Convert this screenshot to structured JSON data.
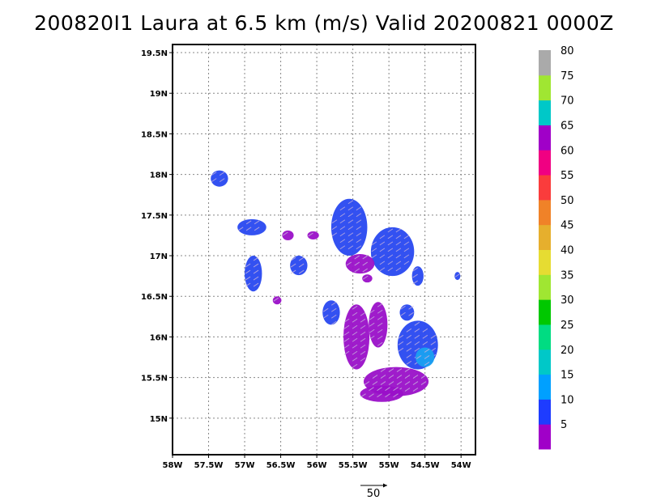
{
  "title": "200820I1 Laura at 6.5 km (m/s) Valid 20200821 0000Z",
  "map": {
    "lon_range": [
      -58,
      -53.8
    ],
    "lat_range": [
      14.55,
      19.6
    ],
    "x_ticks": [
      {
        "v": -58,
        "label": "58W"
      },
      {
        "v": -57.5,
        "label": "57.5W"
      },
      {
        "v": -57,
        "label": "57W"
      },
      {
        "v": -56.5,
        "label": "56.5W"
      },
      {
        "v": -56,
        "label": "56W"
      },
      {
        "v": -55.5,
        "label": "55.5W"
      },
      {
        "v": -55,
        "label": "55W"
      },
      {
        "v": -54.5,
        "label": "54.5W"
      },
      {
        "v": -54,
        "label": "54W"
      }
    ],
    "y_ticks": [
      {
        "v": 15,
        "label": "15N"
      },
      {
        "v": 15.5,
        "label": "15.5N"
      },
      {
        "v": 16,
        "label": "16N"
      },
      {
        "v": 16.5,
        "label": "16.5N"
      },
      {
        "v": 17,
        "label": "17N"
      },
      {
        "v": 17.5,
        "label": "17.5N"
      },
      {
        "v": 18,
        "label": "18N"
      },
      {
        "v": 18.5,
        "label": "18.5N"
      },
      {
        "v": 19,
        "label": "19N"
      },
      {
        "v": 19.5,
        "label": "19.5N"
      }
    ],
    "grid": "dotted"
  },
  "colorbar": {
    "labels": [
      "5",
      "10",
      "15",
      "20",
      "25",
      "30",
      "35",
      "40",
      "45",
      "50",
      "55",
      "60",
      "65",
      "70",
      "75",
      "80"
    ],
    "colors": [
      "#a000c8",
      "#1e3cff",
      "#00a0ff",
      "#00c8c8",
      "#00dc82",
      "#00c800",
      "#a0e632",
      "#e6dc32",
      "#e6af2d",
      "#f08228",
      "#fa3c3c",
      "#f00082",
      "#a000c8",
      "#00c8c8",
      "#a0e632",
      "#aaaaaa"
    ]
  },
  "reference_vector": {
    "label": "50"
  },
  "wind_regions": [
    {
      "lon": -57.35,
      "lat": 17.95,
      "rx": 0.12,
      "ry": 0.1,
      "speed_class": 10
    },
    {
      "lon": -56.9,
      "lat": 17.35,
      "rx": 0.2,
      "ry": 0.1,
      "speed_class": 10
    },
    {
      "lon": -56.4,
      "lat": 17.25,
      "rx": 0.08,
      "ry": 0.06,
      "speed_class": 5
    },
    {
      "lon": -56.88,
      "lat": 16.78,
      "rx": 0.12,
      "ry": 0.22,
      "speed_class": 10
    },
    {
      "lon": -56.25,
      "lat": 16.88,
      "rx": 0.12,
      "ry": 0.12,
      "speed_class": 10
    },
    {
      "lon": -56.05,
      "lat": 17.25,
      "rx": 0.08,
      "ry": 0.05,
      "speed_class": 5
    },
    {
      "lon": -55.55,
      "lat": 17.35,
      "rx": 0.25,
      "ry": 0.35,
      "speed_class": 10
    },
    {
      "lon": -54.95,
      "lat": 17.05,
      "rx": 0.3,
      "ry": 0.3,
      "speed_class": 10
    },
    {
      "lon": -55.4,
      "lat": 16.9,
      "rx": 0.2,
      "ry": 0.12,
      "speed_class": 5
    },
    {
      "lon": -55.3,
      "lat": 16.72,
      "rx": 0.07,
      "ry": 0.05,
      "speed_class": 5
    },
    {
      "lon": -54.6,
      "lat": 16.75,
      "rx": 0.08,
      "ry": 0.12,
      "speed_class": 10
    },
    {
      "lon": -55.8,
      "lat": 16.3,
      "rx": 0.12,
      "ry": 0.15,
      "speed_class": 10
    },
    {
      "lon": -55.45,
      "lat": 16.0,
      "rx": 0.18,
      "ry": 0.4,
      "speed_class": 5
    },
    {
      "lon": -55.15,
      "lat": 16.15,
      "rx": 0.13,
      "ry": 0.28,
      "speed_class": 5
    },
    {
      "lon": -54.6,
      "lat": 15.9,
      "rx": 0.28,
      "ry": 0.3,
      "speed_class": 10
    },
    {
      "lon": -54.5,
      "lat": 15.75,
      "rx": 0.13,
      "ry": 0.12,
      "speed_class": 15
    },
    {
      "lon": -54.9,
      "lat": 15.45,
      "rx": 0.45,
      "ry": 0.18,
      "speed_class": 5
    },
    {
      "lon": -55.1,
      "lat": 15.3,
      "rx": 0.3,
      "ry": 0.1,
      "speed_class": 5
    },
    {
      "lon": -54.75,
      "lat": 16.3,
      "rx": 0.1,
      "ry": 0.1,
      "speed_class": 10
    },
    {
      "lon": -54.05,
      "lat": 16.75,
      "rx": 0.04,
      "ry": 0.05,
      "speed_class": 10
    },
    {
      "lon": -56.55,
      "lat": 16.45,
      "rx": 0.06,
      "ry": 0.05,
      "speed_class": 5
    }
  ]
}
